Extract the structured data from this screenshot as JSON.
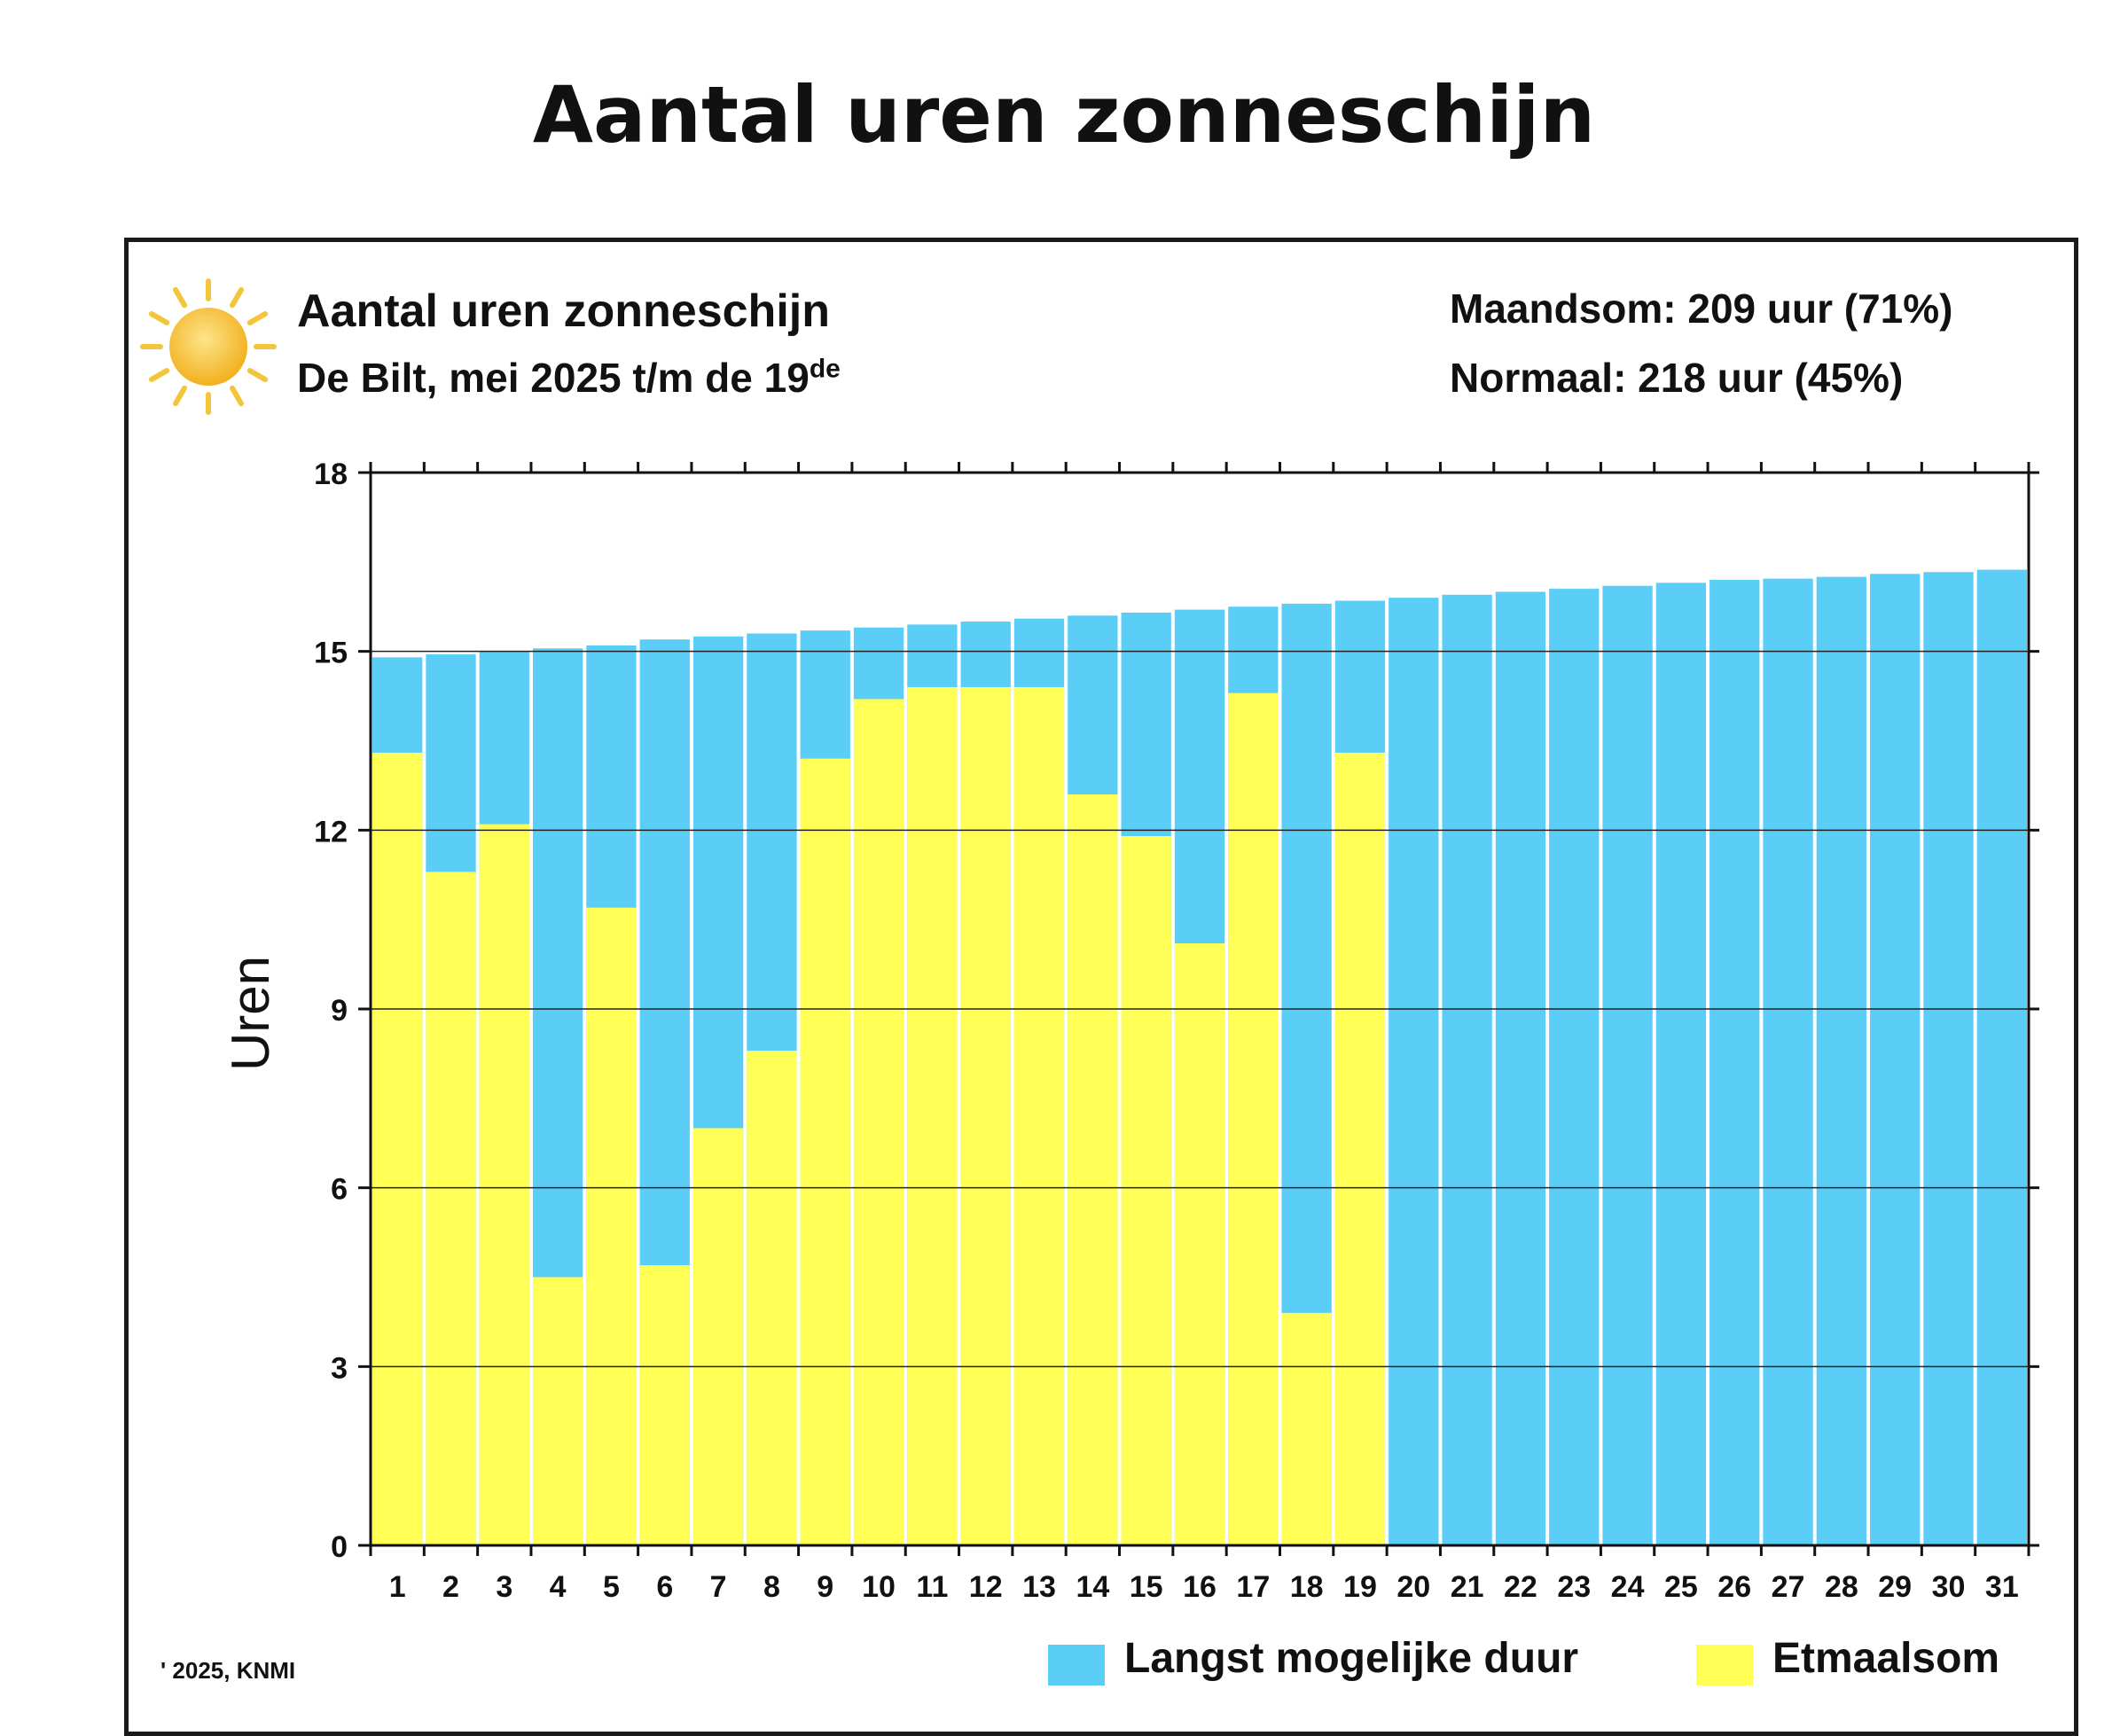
{
  "page_title": "Aantal uren zonneschijn",
  "header": {
    "title": "Aantal uren zonneschijn",
    "subtitle": "De Bilt, mei 2025 t/m de 19",
    "subtitle_sup": "de",
    "month_sum": "Maandsom: 209 uur (71%)",
    "normal": "Normaal: 218 uur (45%)"
  },
  "footer": {
    "copyright": "' 2025, KNMI"
  },
  "legend": {
    "long_label": "Langst mogelijke duur",
    "sum_label": "Etmaalsom"
  },
  "icons": {
    "sun": "sun-icon"
  },
  "colors": {
    "long": "#5bcef7",
    "sum": "#ffff55",
    "sun": "#f6c531",
    "ray": "#f3c53a"
  },
  "chart_data": {
    "type": "bar",
    "ylabel": "Uren",
    "xlabel": "",
    "ylim": [
      0,
      18
    ],
    "yticks": [
      0,
      3,
      6,
      9,
      12,
      15,
      18
    ],
    "grid": true,
    "legend_position": "bottom-right",
    "categories": [
      "1",
      "2",
      "3",
      "4",
      "5",
      "6",
      "7",
      "8",
      "9",
      "10",
      "11",
      "12",
      "13",
      "14",
      "15",
      "16",
      "17",
      "18",
      "19",
      "20",
      "21",
      "22",
      "23",
      "24",
      "25",
      "26",
      "27",
      "28",
      "29",
      "30",
      "31"
    ],
    "series": [
      {
        "name": "Langst mogelijke duur",
        "color": "#5bcef7",
        "values": [
          14.9,
          14.95,
          15.0,
          15.05,
          15.1,
          15.2,
          15.25,
          15.3,
          15.35,
          15.4,
          15.45,
          15.5,
          15.55,
          15.6,
          15.65,
          15.7,
          15.75,
          15.8,
          15.85,
          15.9,
          15.95,
          16.0,
          16.05,
          16.1,
          16.15,
          16.2,
          16.22,
          16.25,
          16.3,
          16.33,
          16.37
        ]
      },
      {
        "name": "Etmaalsom",
        "color": "#ffff55",
        "values": [
          13.3,
          11.3,
          12.1,
          4.5,
          10.7,
          4.7,
          7.0,
          8.3,
          13.2,
          14.2,
          14.4,
          14.4,
          14.4,
          12.6,
          11.9,
          10.1,
          14.3,
          3.9,
          13.3,
          null,
          null,
          null,
          null,
          null,
          null,
          null,
          null,
          null,
          null,
          null,
          null
        ]
      }
    ]
  }
}
